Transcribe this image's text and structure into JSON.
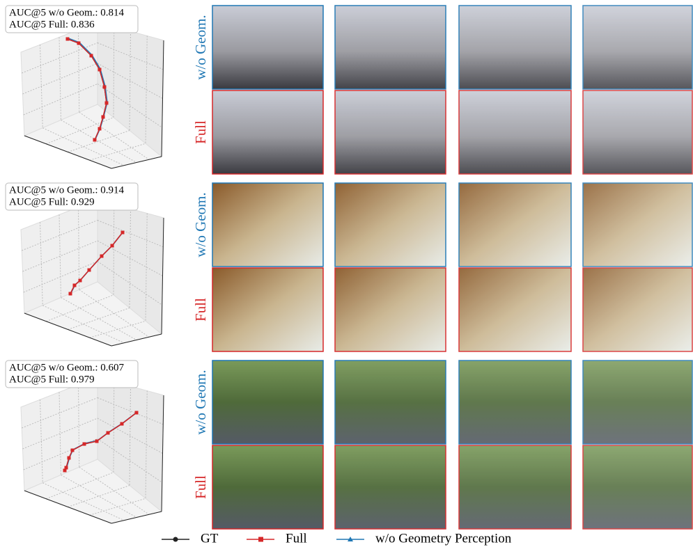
{
  "panels": [
    {
      "annotation": [
        "AUC@5  w/o Geom.: 0.814",
        "AUC@5  Full: 0.836"
      ],
      "row_labels": [
        "w/o Geom.",
        "Full"
      ]
    },
    {
      "annotation": [
        "AUC@5  w/o Geom.: 0.914",
        "AUC@5  Full: 0.929"
      ],
      "row_labels": [
        "w/o Geom.",
        "Full"
      ]
    },
    {
      "annotation": [
        "AUC@5  w/o Geom.: 0.607",
        "AUC@5  Full: 0.979"
      ],
      "row_labels": [
        "w/o Geom.",
        "Full"
      ]
    }
  ],
  "legend": [
    "GT",
    "Full",
    "w/o Geometry Perception"
  ]
}
